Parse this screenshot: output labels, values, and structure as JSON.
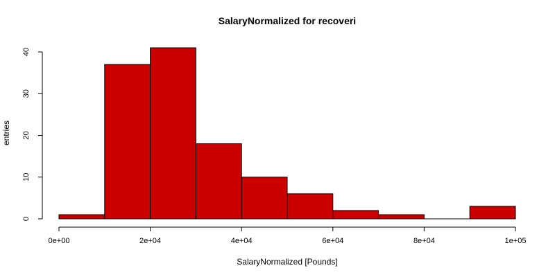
{
  "chart_data": {
    "type": "bar",
    "title": "SalaryNormalized for recoveri",
    "xlabel": "SalaryNormalized [Pounds]",
    "ylabel": "entries",
    "bin_edges": [
      0,
      10000,
      20000,
      30000,
      40000,
      50000,
      60000,
      70000,
      80000,
      90000,
      100000
    ],
    "values": [
      1,
      37,
      41,
      18,
      10,
      6,
      2,
      1,
      0,
      3
    ],
    "xlim": [
      0,
      100000
    ],
    "ylim": [
      0,
      41
    ],
    "x_ticks": [
      0,
      20000,
      40000,
      60000,
      80000,
      100000
    ],
    "x_tick_labels": [
      "0e+00",
      "2e+04",
      "4e+04",
      "6e+04",
      "8e+04",
      "1e+05"
    ],
    "y_ticks": [
      0,
      10,
      20,
      30,
      40
    ],
    "y_tick_labels": [
      "0",
      "10",
      "20",
      "30",
      "40"
    ],
    "bar_color": "#cc0000",
    "grid": false
  }
}
